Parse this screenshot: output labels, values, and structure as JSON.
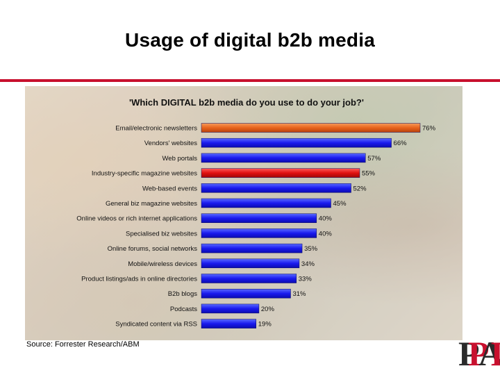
{
  "slide": {
    "title": "Usage of digital b2b media",
    "source": "Source: Forrester Research/ABM",
    "logo_letters": [
      "P",
      "P",
      "A",
      "I"
    ]
  },
  "colors": {
    "accent_rule": "#c8102e",
    "bar_default": "#1a1aee",
    "bar_orange": "#e8641c",
    "bar_red": "#e01010",
    "logo_dark": "#2a2a2a",
    "logo_red": "#c8102e"
  },
  "chart_data": {
    "type": "bar",
    "orientation": "horizontal",
    "title": "'Which DIGITAL b2b media do you use to do your job?'",
    "categories": [
      "Email/electronic newsletters",
      "Vendors' websites",
      "Web portals",
      "Industry-specific magazine websites",
      "Web-based events",
      "General biz magazine websites",
      "Online videos or rich internet applications",
      "Specialised biz websites",
      "Online forums, social networks",
      "Mobile/wireless devices",
      "Product listings/ads in online directories",
      "B2b blogs",
      "Podcasts",
      "Syndicated content via RSS"
    ],
    "values": [
      76,
      66,
      57,
      55,
      52,
      45,
      40,
      40,
      35,
      34,
      33,
      31,
      20,
      19
    ],
    "value_labels": [
      "76%",
      "66%",
      "57%",
      "55%",
      "52%",
      "45%",
      "40%",
      "40%",
      "35%",
      "34%",
      "33%",
      "31%",
      "20%",
      "19%"
    ],
    "highlight": {
      "0": "orange",
      "3": "red"
    },
    "unit": "%",
    "xlim": [
      0,
      76
    ],
    "grid": false,
    "legend": "none"
  }
}
